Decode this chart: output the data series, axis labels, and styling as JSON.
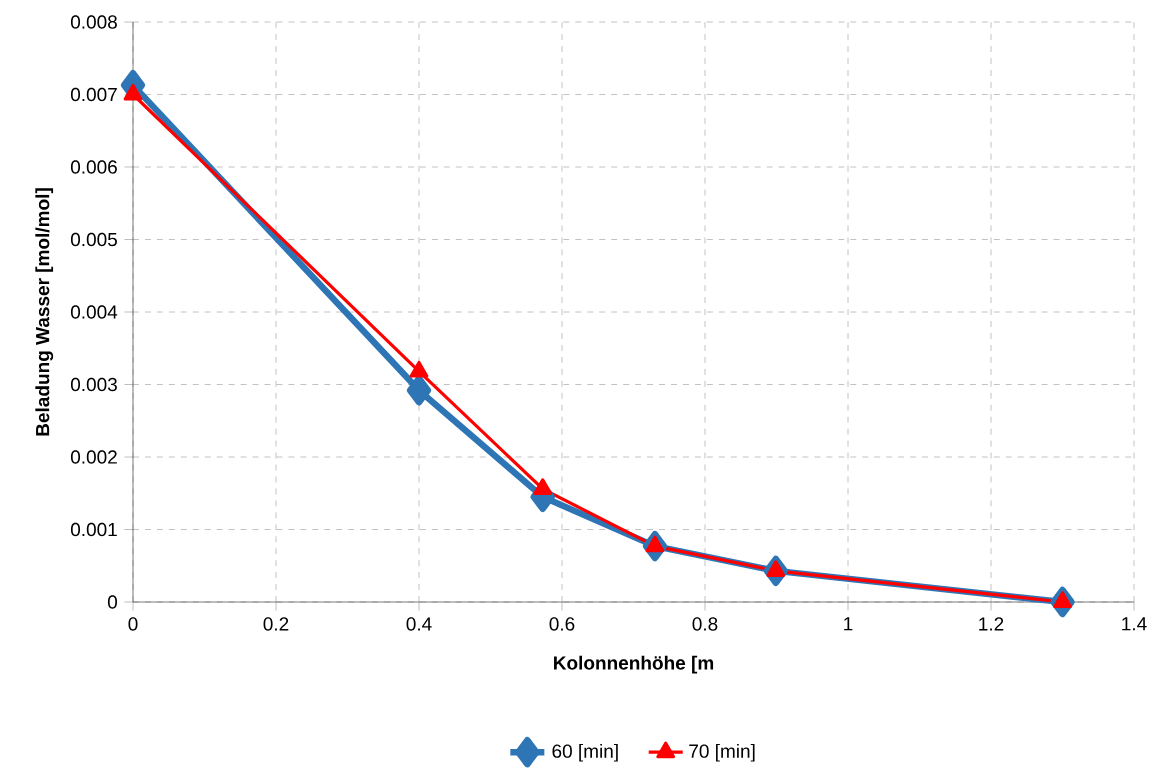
{
  "chart_data": {
    "type": "line",
    "xlabel": "Kolonnenhöhe [m",
    "ylabel": "Beladung Wasser [mol/mol]",
    "x": [
      0,
      0.4,
      0.573,
      0.73,
      0.899,
      1.3
    ],
    "series": [
      {
        "name": "60 [min]",
        "color": "#2e75b6",
        "marker": "diamond",
        "values": [
          0.00713,
          0.00292,
          0.00145,
          0.00077,
          0.00043,
          0
        ]
      },
      {
        "name": "70 [min]",
        "color": "#ff0000",
        "marker": "triangle",
        "values": [
          0.007,
          0.00318,
          0.00156,
          0.00077,
          0.00043,
          0
        ]
      }
    ],
    "xlim": [
      0,
      1.4
    ],
    "xticks": [
      0,
      0.2,
      0.4,
      0.6,
      0.8,
      1,
      1.2,
      1.4
    ],
    "ylim": [
      0,
      0.008
    ],
    "yticks": [
      0,
      0.001,
      0.002,
      0.003,
      0.004,
      0.005,
      0.006,
      0.007,
      0.008
    ],
    "grid": true,
    "legend": "bottom",
    "line_style": "solid"
  }
}
